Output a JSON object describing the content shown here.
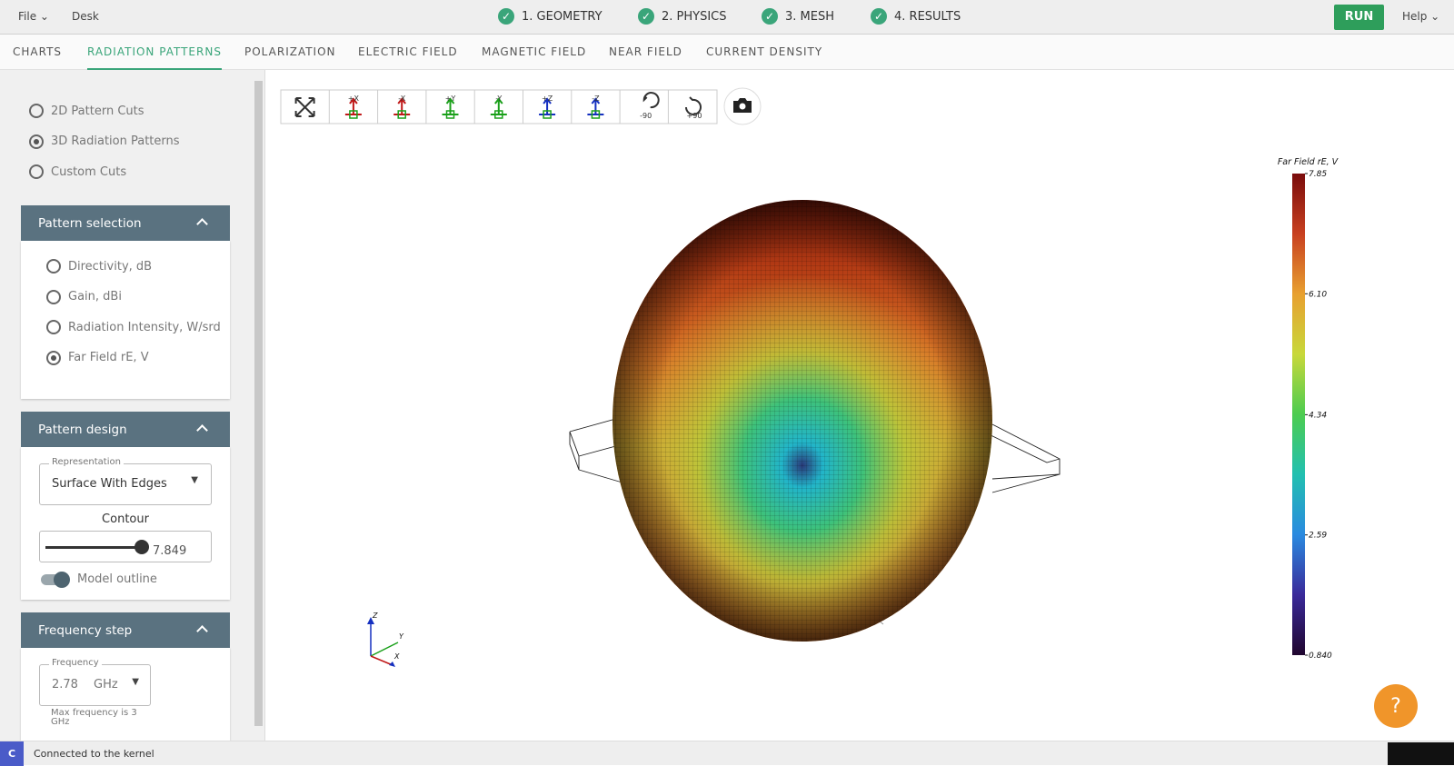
{
  "menu": {
    "file": "File",
    "desk": "Desk",
    "run": "RUN",
    "help": "Help"
  },
  "steps": [
    "1. GEOMETRY",
    "2. PHYSICS",
    "3. MESH",
    "4. RESULTS"
  ],
  "tabs": [
    "CHARTS",
    "RADIATION PATTERNS",
    "POLARIZATION",
    "ELECTRIC FIELD",
    "MAGNETIC FIELD",
    "NEAR FIELD",
    "CURRENT DENSITY"
  ],
  "view_options": [
    "2D Pattern Cuts",
    "3D Radiation Patterns",
    "Custom Cuts"
  ],
  "pattern_selection": {
    "title": "Pattern selection",
    "options": [
      "Directivity, dB",
      "Gain, dBi",
      "Radiation Intensity, W/srd",
      "Far Field rE, V"
    ]
  },
  "pattern_design": {
    "title": "Pattern design",
    "representation_label": "Representation",
    "representation": "Surface With Edges",
    "contour_label": "Contour",
    "contour_value": "7.849",
    "model_outline": "Model outline"
  },
  "frequency_step": {
    "title": "Frequency step",
    "frequency_label": "Frequency",
    "frequency": "2.78",
    "unit": "GHz",
    "note": "Max frequency is 3 GHz"
  },
  "view_buttons": [
    "+X",
    "-X",
    "+Y",
    "-Y",
    "+Z",
    "-Z",
    "-90",
    "+90"
  ],
  "colorbar": {
    "title": "Far Field rE, V",
    "ticks": [
      "7.85",
      "6.10",
      "4.34",
      "2.59",
      "0.840"
    ]
  },
  "axes": [
    "Z",
    "Y",
    "X"
  ],
  "status": "Connected to the kernel"
}
